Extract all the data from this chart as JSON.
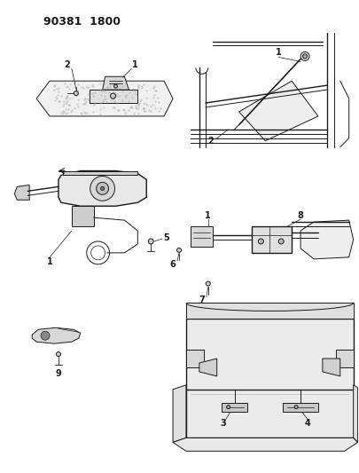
{
  "background": "#ffffff",
  "header": "90381  1800",
  "fig_w": 4.05,
  "fig_h": 5.33,
  "dpi": 100
}
